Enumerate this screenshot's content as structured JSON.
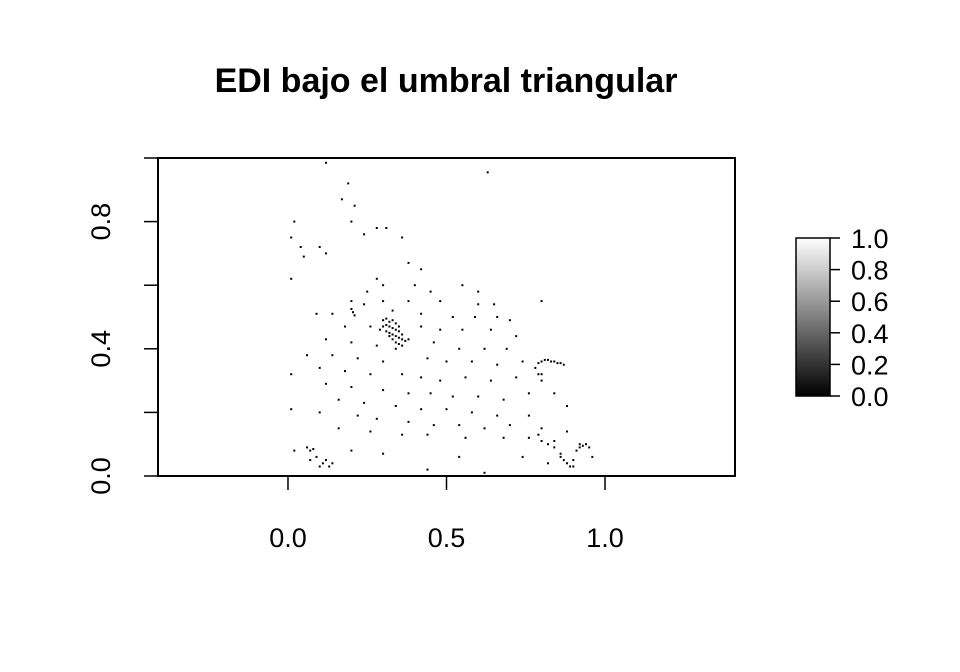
{
  "chart_data": {
    "type": "heatmap",
    "title": "EDI bajo el umbral triangular",
    "xlabel": "",
    "ylabel": "",
    "xlim": [
      -0.41,
      1.41
    ],
    "ylim": [
      0.0,
      1.0
    ],
    "x_ticks": [
      {
        "value": 0.0,
        "label": "0.0"
      },
      {
        "value": 0.5,
        "label": "0.5"
      },
      {
        "value": 1.0,
        "label": "1.0"
      }
    ],
    "y_ticks": [
      {
        "value": 0.0,
        "label": "0.0"
      },
      {
        "value": 0.2,
        "label": ""
      },
      {
        "value": 0.4,
        "label": "0.4"
      },
      {
        "value": 0.6,
        "label": ""
      },
      {
        "value": 0.8,
        "label": "0.8"
      },
      {
        "value": 1.0,
        "label": ""
      }
    ],
    "colorscale": {
      "name": "grayscale",
      "low_color": "#000000",
      "high_color": "#ffffff",
      "range": [
        0.0,
        1.0
      ],
      "ticks": [
        {
          "value": 0.0,
          "label": "0.0"
        },
        {
          "value": 0.2,
          "label": "0.2"
        },
        {
          "value": 0.4,
          "label": "0.4"
        },
        {
          "value": 0.6,
          "label": "0.6"
        },
        {
          "value": 0.8,
          "label": "0.8"
        },
        {
          "value": 1.0,
          "label": "1.0"
        }
      ]
    },
    "background_value": 1.0,
    "dark_cells": [
      [
        0.12,
        0.985
      ],
      [
        0.63,
        0.955
      ],
      [
        0.19,
        0.92
      ],
      [
        0.17,
        0.87
      ],
      [
        0.21,
        0.85
      ],
      [
        0.02,
        0.8
      ],
      [
        0.2,
        0.8
      ],
      [
        0.28,
        0.78
      ],
      [
        0.31,
        0.78
      ],
      [
        0.24,
        0.76
      ],
      [
        0.01,
        0.75
      ],
      [
        0.04,
        0.72
      ],
      [
        0.1,
        0.72
      ],
      [
        0.36,
        0.75
      ],
      [
        0.05,
        0.69
      ],
      [
        0.12,
        0.7
      ],
      [
        0.38,
        0.67
      ],
      [
        0.42,
        0.65
      ],
      [
        0.01,
        0.62
      ],
      [
        0.28,
        0.62
      ],
      [
        0.3,
        0.6
      ],
      [
        0.4,
        0.6
      ],
      [
        0.55,
        0.6
      ],
      [
        0.25,
        0.58
      ],
      [
        0.45,
        0.58
      ],
      [
        0.6,
        0.58
      ],
      [
        0.2,
        0.55
      ],
      [
        0.24,
        0.54
      ],
      [
        0.3,
        0.55
      ],
      [
        0.38,
        0.55
      ],
      [
        0.48,
        0.55
      ],
      [
        0.6,
        0.54
      ],
      [
        0.65,
        0.54
      ],
      [
        0.8,
        0.55
      ],
      [
        0.09,
        0.51
      ],
      [
        0.14,
        0.51
      ],
      [
        0.33,
        0.52
      ],
      [
        0.42,
        0.51
      ],
      [
        0.52,
        0.5
      ],
      [
        0.59,
        0.5
      ],
      [
        0.66,
        0.5
      ],
      [
        0.7,
        0.49
      ],
      [
        0.18,
        0.47
      ],
      [
        0.26,
        0.47
      ],
      [
        0.42,
        0.47
      ],
      [
        0.48,
        0.46
      ],
      [
        0.55,
        0.46
      ],
      [
        0.64,
        0.46
      ],
      [
        0.72,
        0.44
      ],
      [
        0.12,
        0.43
      ],
      [
        0.2,
        0.42
      ],
      [
        0.28,
        0.41
      ],
      [
        0.38,
        0.43
      ],
      [
        0.46,
        0.42
      ],
      [
        0.54,
        0.4
      ],
      [
        0.62,
        0.4
      ],
      [
        0.69,
        0.4
      ],
      [
        0.06,
        0.38
      ],
      [
        0.14,
        0.38
      ],
      [
        0.22,
        0.37
      ],
      [
        0.3,
        0.36
      ],
      [
        0.44,
        0.37
      ],
      [
        0.5,
        0.36
      ],
      [
        0.58,
        0.36
      ],
      [
        0.66,
        0.35
      ],
      [
        0.74,
        0.36
      ],
      [
        0.1,
        0.34
      ],
      [
        0.18,
        0.33
      ],
      [
        0.26,
        0.32
      ],
      [
        0.36,
        0.32
      ],
      [
        0.42,
        0.31
      ],
      [
        0.48,
        0.3
      ],
      [
        0.56,
        0.31
      ],
      [
        0.64,
        0.3
      ],
      [
        0.72,
        0.31
      ],
      [
        0.8,
        0.32
      ],
      [
        0.01,
        0.32
      ],
      [
        0.12,
        0.29
      ],
      [
        0.2,
        0.28
      ],
      [
        0.3,
        0.27
      ],
      [
        0.38,
        0.26
      ],
      [
        0.45,
        0.26
      ],
      [
        0.52,
        0.25
      ],
      [
        0.6,
        0.25
      ],
      [
        0.68,
        0.24
      ],
      [
        0.76,
        0.26
      ],
      [
        0.84,
        0.26
      ],
      [
        0.16,
        0.24
      ],
      [
        0.24,
        0.23
      ],
      [
        0.34,
        0.22
      ],
      [
        0.42,
        0.21
      ],
      [
        0.5,
        0.21
      ],
      [
        0.58,
        0.2
      ],
      [
        0.66,
        0.19
      ],
      [
        0.76,
        0.19
      ],
      [
        0.88,
        0.22
      ],
      [
        0.01,
        0.21
      ],
      [
        0.1,
        0.2
      ],
      [
        0.22,
        0.19
      ],
      [
        0.28,
        0.18
      ],
      [
        0.38,
        0.17
      ],
      [
        0.46,
        0.16
      ],
      [
        0.54,
        0.16
      ],
      [
        0.62,
        0.15
      ],
      [
        0.7,
        0.16
      ],
      [
        0.8,
        0.15
      ],
      [
        0.88,
        0.14
      ],
      [
        0.16,
        0.15
      ],
      [
        0.26,
        0.14
      ],
      [
        0.36,
        0.13
      ],
      [
        0.44,
        0.13
      ],
      [
        0.56,
        0.12
      ],
      [
        0.68,
        0.12
      ],
      [
        0.76,
        0.12
      ],
      [
        0.84,
        0.11
      ],
      [
        0.92,
        0.1
      ],
      [
        0.02,
        0.08
      ],
      [
        0.07,
        0.08
      ],
      [
        0.2,
        0.08
      ],
      [
        0.3,
        0.07
      ],
      [
        0.54,
        0.06
      ],
      [
        0.74,
        0.06
      ],
      [
        0.86,
        0.06
      ],
      [
        0.07,
        0.05
      ],
      [
        0.1,
        0.03
      ],
      [
        0.13,
        0.03
      ],
      [
        0.44,
        0.02
      ],
      [
        0.62,
        0.01
      ],
      [
        0.82,
        0.04
      ],
      [
        0.9,
        0.03
      ],
      [
        0.2,
        0.525
      ],
      [
        0.205,
        0.515
      ],
      [
        0.21,
        0.505
      ],
      [
        0.3,
        0.49
      ],
      [
        0.31,
        0.495
      ],
      [
        0.32,
        0.485
      ],
      [
        0.33,
        0.49
      ],
      [
        0.34,
        0.48
      ],
      [
        0.3,
        0.47
      ],
      [
        0.31,
        0.475
      ],
      [
        0.32,
        0.47
      ],
      [
        0.33,
        0.465
      ],
      [
        0.34,
        0.46
      ],
      [
        0.35,
        0.455
      ],
      [
        0.31,
        0.455
      ],
      [
        0.32,
        0.45
      ],
      [
        0.33,
        0.445
      ],
      [
        0.34,
        0.44
      ],
      [
        0.35,
        0.435
      ],
      [
        0.36,
        0.43
      ],
      [
        0.33,
        0.43
      ],
      [
        0.34,
        0.42
      ],
      [
        0.35,
        0.415
      ],
      [
        0.36,
        0.41
      ],
      [
        0.37,
        0.425
      ],
      [
        0.32,
        0.44
      ],
      [
        0.35,
        0.47
      ],
      [
        0.29,
        0.46
      ],
      [
        0.36,
        0.445
      ],
      [
        0.34,
        0.4
      ],
      [
        0.79,
        0.355
      ],
      [
        0.8,
        0.36
      ],
      [
        0.81,
        0.365
      ],
      [
        0.82,
        0.365
      ],
      [
        0.83,
        0.36
      ],
      [
        0.84,
        0.36
      ],
      [
        0.85,
        0.355
      ],
      [
        0.86,
        0.355
      ],
      [
        0.87,
        0.35
      ],
      [
        0.78,
        0.34
      ],
      [
        0.79,
        0.32
      ],
      [
        0.8,
        0.3
      ],
      [
        0.79,
        0.13
      ],
      [
        0.8,
        0.11
      ],
      [
        0.82,
        0.1
      ],
      [
        0.84,
        0.09
      ],
      [
        0.86,
        0.07
      ],
      [
        0.87,
        0.05
      ],
      [
        0.88,
        0.04
      ],
      [
        0.89,
        0.03
      ],
      [
        0.9,
        0.05
      ],
      [
        0.91,
        0.08
      ],
      [
        0.92,
        0.09
      ],
      [
        0.93,
        0.095
      ],
      [
        0.94,
        0.1
      ],
      [
        0.95,
        0.09
      ],
      [
        0.96,
        0.06
      ],
      [
        0.06,
        0.09
      ],
      [
        0.08,
        0.085
      ],
      [
        0.09,
        0.06
      ],
      [
        0.11,
        0.04
      ],
      [
        0.12,
        0.05
      ],
      [
        0.14,
        0.04
      ]
    ]
  }
}
